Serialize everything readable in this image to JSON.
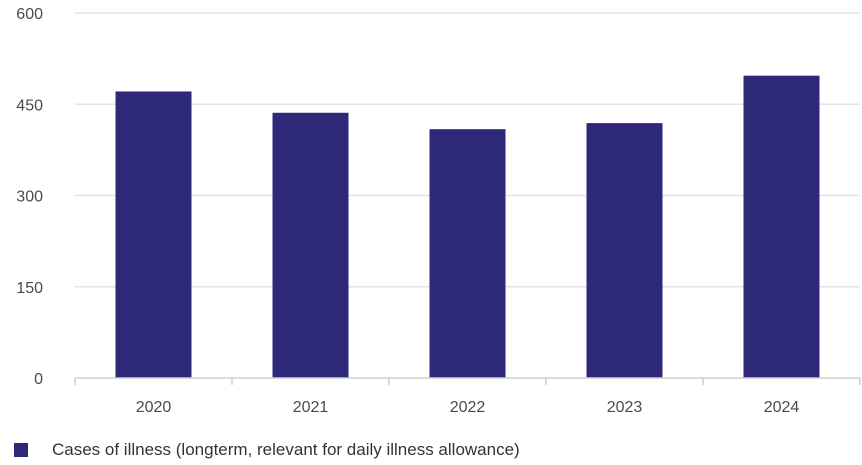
{
  "chart_data": {
    "type": "bar",
    "categories": [
      "2020",
      "2021",
      "2022",
      "2023",
      "2024"
    ],
    "series": [
      {
        "name": "Cases of illness (longterm, relevant for daily illness allowance)",
        "values": [
          471,
          436,
          409,
          419,
          497
        ]
      }
    ],
    "ylim": [
      0,
      600
    ],
    "yticks": [
      "0",
      "150",
      "300",
      "450",
      "600"
    ],
    "grid": true,
    "legend_position": "bottom-left",
    "colors": {
      "bar": "#2e2878",
      "grid": "#e3e3e3",
      "axis": "#cfcfcf"
    }
  }
}
